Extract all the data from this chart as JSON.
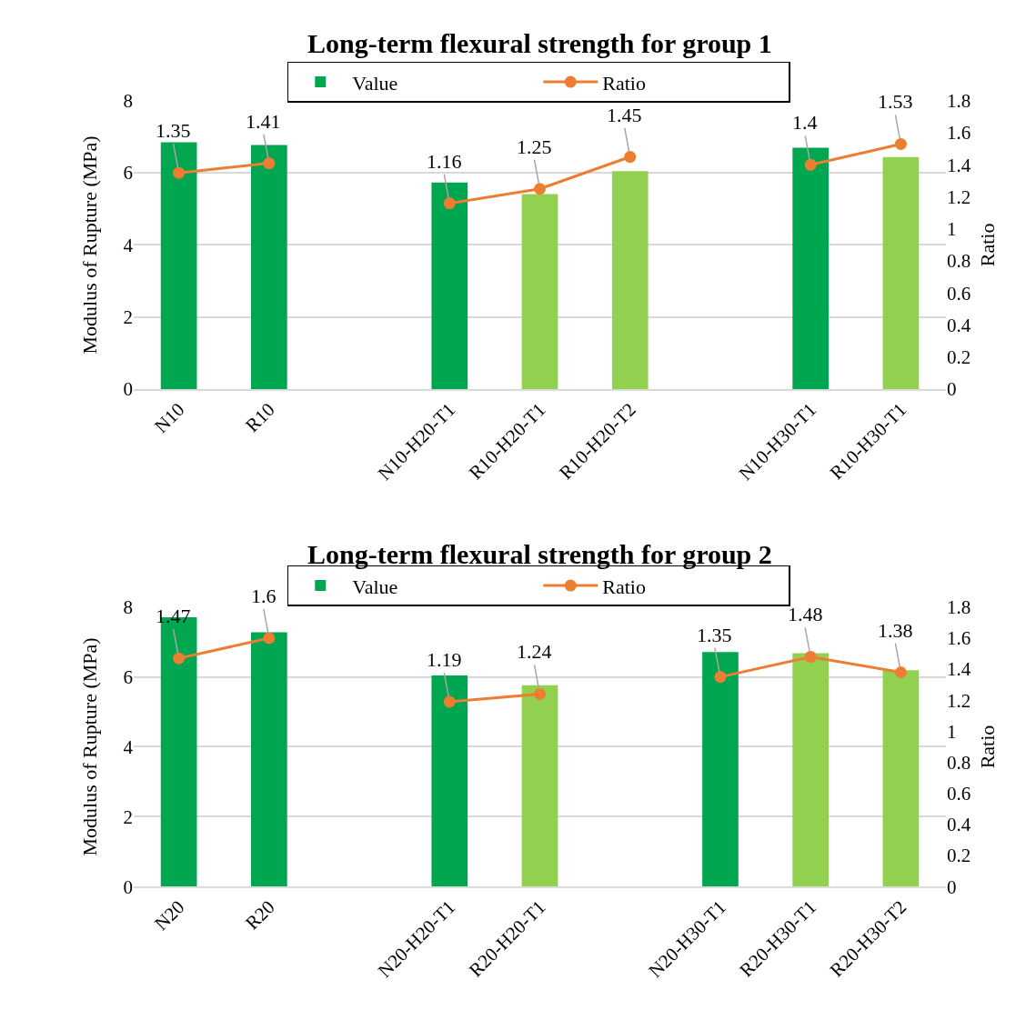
{
  "chart_data": [
    {
      "type": "bar",
      "title": "Long-term flexural strength for group 1",
      "ylabel": "Modulus of Rupture (MPa)",
      "y2label": "Ratio",
      "categories": [
        "N10",
        "R10",
        null,
        "N10-H20-T1",
        "R10-H20-T1",
        "R10-H20-T2",
        null,
        "N10-H30-T1",
        "R10-H30-T1"
      ],
      "series": [
        {
          "name": "Value",
          "color": "#00a650",
          "colors": [
            "#00a650",
            "#00a650",
            null,
            "#00a650",
            "#92d050",
            "#92d050",
            null,
            "#00a650",
            "#92d050"
          ],
          "values": [
            6.85,
            6.77,
            null,
            5.73,
            5.41,
            6.05,
            null,
            6.7,
            6.44
          ]
        },
        {
          "name": "Ratio",
          "type": "line",
          "axis": "y2",
          "color": "#ed7d31",
          "marker": "circle",
          "data_labels": true,
          "values": [
            1.35,
            1.41,
            null,
            1.16,
            1.25,
            1.45,
            null,
            1.4,
            1.53
          ]
        }
      ],
      "ylim": [
        0,
        8
      ],
      "yticks": [
        0,
        2,
        4,
        6,
        8
      ],
      "y2lim": [
        0,
        1.8
      ],
      "y2ticks": [
        0,
        0.2,
        0.4,
        0.6,
        0.8,
        1,
        1.2,
        1.4,
        1.6,
        1.8
      ],
      "grid": "y",
      "legend": "top"
    },
    {
      "type": "bar",
      "title": "Long-term flexural strength for group 2",
      "ylabel": "Modulus of Rupture (MPa)",
      "y2label": "Ratio",
      "categories": [
        "N20",
        "R20",
        null,
        "N20-H20-T1",
        "R20-H20-T1",
        null,
        "N20-H30-T1",
        "R20-H30-T1",
        "R20-H30-T2"
      ],
      "series": [
        {
          "name": "Value",
          "color": "#00a650",
          "colors": [
            "#00a650",
            "#00a650",
            null,
            "#00a650",
            "#92d050",
            null,
            "#00a650",
            "#92d050",
            "#92d050"
          ],
          "values": [
            7.71,
            7.28,
            null,
            6.04,
            5.76,
            null,
            6.71,
            6.68,
            6.19
          ]
        },
        {
          "name": "Ratio",
          "type": "line",
          "axis": "y2",
          "color": "#ed7d31",
          "marker": "circle",
          "data_labels": true,
          "values": [
            1.47,
            1.6,
            null,
            1.19,
            1.24,
            null,
            1.35,
            1.48,
            1.38
          ]
        }
      ],
      "ylim": [
        0,
        8
      ],
      "yticks": [
        0,
        2,
        4,
        6,
        8
      ],
      "y2lim": [
        0,
        1.8
      ],
      "y2ticks": [
        0,
        0.2,
        0.4,
        0.6,
        0.8,
        1,
        1.2,
        1.4,
        1.6,
        1.8
      ],
      "grid": "y",
      "legend": "top"
    }
  ]
}
